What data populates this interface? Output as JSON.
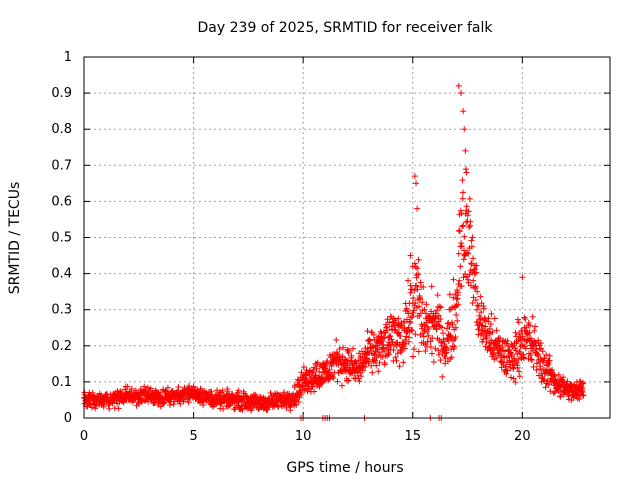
{
  "chart_data": {
    "type": "scatter",
    "title": "Day 239 of 2025, SRMTID for receiver falk",
    "xlabel": "GPS time / hours",
    "ylabel": "SRMTID / TECUs",
    "xlim": [
      0,
      24
    ],
    "ylim": [
      0,
      1
    ],
    "x_ticks": [
      0,
      5,
      10,
      15,
      20
    ],
    "x_tick_labels": [
      "0",
      "5",
      "10",
      "15",
      "20"
    ],
    "y_ticks": [
      0,
      0.1,
      0.2,
      0.3,
      0.4,
      0.5,
      0.6,
      0.7,
      0.8,
      0.9,
      1
    ],
    "y_tick_labels": [
      "0",
      "0.1",
      "0.2",
      "0.3",
      "0.4",
      "0.5",
      "0.6",
      "0.7",
      "0.8",
      "0.9",
      "1"
    ],
    "grid": true,
    "marker": "+",
    "color": "#ff0000",
    "envelope": {
      "description": "approximate median and spread of SRMTID vs time",
      "x": [
        0.0,
        1.0,
        2.0,
        3.0,
        4.0,
        5.0,
        6.0,
        7.0,
        8.0,
        9.0,
        9.6,
        10.0,
        10.5,
        11.0,
        11.5,
        12.0,
        12.5,
        13.0,
        13.5,
        14.0,
        14.5,
        15.0,
        15.2,
        15.5,
        16.0,
        16.5,
        17.0,
        17.2,
        17.5,
        17.8,
        18.0,
        18.5,
        19.0,
        19.5,
        20.0,
        20.5,
        21.0,
        21.5,
        22.0,
        22.5,
        22.8
      ],
      "center": [
        0.05,
        0.05,
        0.06,
        0.06,
        0.06,
        0.07,
        0.05,
        0.05,
        0.04,
        0.05,
        0.06,
        0.1,
        0.12,
        0.12,
        0.16,
        0.15,
        0.13,
        0.18,
        0.19,
        0.22,
        0.23,
        0.3,
        0.33,
        0.25,
        0.26,
        0.2,
        0.3,
        0.55,
        0.5,
        0.4,
        0.28,
        0.22,
        0.18,
        0.16,
        0.22,
        0.2,
        0.14,
        0.1,
        0.08,
        0.07,
        0.09
      ],
      "spread": [
        0.03,
        0.03,
        0.03,
        0.03,
        0.03,
        0.03,
        0.03,
        0.03,
        0.03,
        0.03,
        0.04,
        0.05,
        0.06,
        0.06,
        0.07,
        0.06,
        0.06,
        0.07,
        0.08,
        0.09,
        0.1,
        0.14,
        0.22,
        0.12,
        0.12,
        0.1,
        0.14,
        0.28,
        0.2,
        0.15,
        0.1,
        0.09,
        0.08,
        0.08,
        0.1,
        0.1,
        0.07,
        0.05,
        0.04,
        0.04,
        0.04
      ]
    },
    "peaks": [
      {
        "x": 15.1,
        "y": 0.67
      },
      {
        "x": 15.15,
        "y": 0.65
      },
      {
        "x": 15.2,
        "y": 0.58
      },
      {
        "x": 17.1,
        "y": 0.92
      },
      {
        "x": 17.2,
        "y": 0.9
      },
      {
        "x": 17.3,
        "y": 0.85
      },
      {
        "x": 17.35,
        "y": 0.8
      },
      {
        "x": 17.4,
        "y": 0.74
      },
      {
        "x": 17.45,
        "y": 0.68
      },
      {
        "x": 20.0,
        "y": 0.39
      },
      {
        "x": 14.9,
        "y": 0.45
      },
      {
        "x": 15.0,
        "y": 0.42
      }
    ],
    "zero_points_x": [
      9.9,
      10.0,
      10.9,
      11.0,
      11.1,
      11.2,
      12.8,
      15.8,
      16.2,
      16.3
    ]
  }
}
